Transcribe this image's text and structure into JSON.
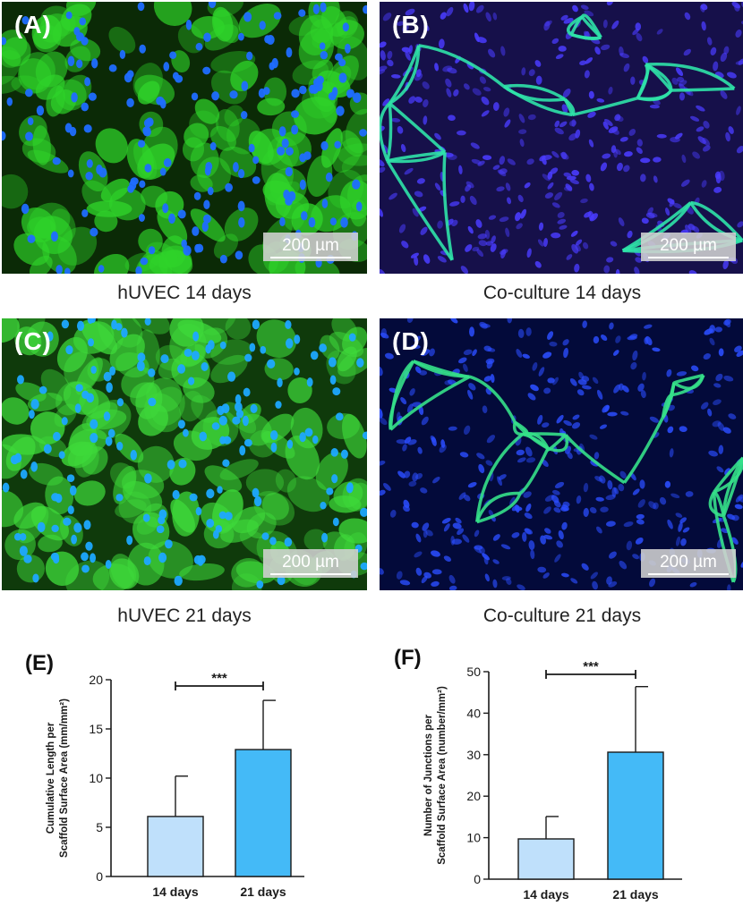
{
  "panels": [
    {
      "letter": "(A)",
      "caption": "hUVEC 14 days",
      "scale": "200 µm",
      "style": "monolayer",
      "stain_colors": {
        "actin": "#2fd42a",
        "nuclei": "#1f6dff",
        "background": "#0b2a06"
      }
    },
    {
      "letter": "(B)",
      "caption": "Co-culture 14 days",
      "scale": "200 µm",
      "style": "network",
      "stain_colors": {
        "actin": "#2fe3a8",
        "nuclei": "#4a3cff",
        "background": "#16104a"
      }
    },
    {
      "letter": "(C)",
      "caption": "hUVEC 21 days",
      "scale": "200 µm",
      "style": "monolayer",
      "stain_colors": {
        "actin": "#3ed93a",
        "nuclei": "#1ea8ff",
        "background": "#0f3a0b"
      }
    },
    {
      "letter": "(D)",
      "caption": "Co-culture 21 days",
      "scale": "200 µm",
      "style": "network",
      "stain_colors": {
        "actin": "#35e08a",
        "nuclei": "#2b4dff",
        "background": "#030a3a"
      }
    }
  ],
  "chart_data": [
    {
      "type": "bar",
      "panel_label": "(E)",
      "ylabel_line1": "Cumulative Length per",
      "ylabel_line2": "Scaffold Surface Area (mm/mm²)",
      "categories": [
        "14 days",
        "21 days"
      ],
      "values": [
        6.1,
        12.9
      ],
      "error": [
        4.1,
        5.0
      ],
      "ylim": [
        0,
        20
      ],
      "yticks": [
        0,
        5,
        10,
        15,
        20
      ],
      "significance": "***",
      "colors": [
        "#bfe0fb",
        "#44baf7"
      ]
    },
    {
      "type": "bar",
      "panel_label": "(F)",
      "ylabel_line1": "Number of Junctions per",
      "ylabel_line2": "Scaffold Surface Area (number/mm²)",
      "categories": [
        "14 days",
        "21 days"
      ],
      "values": [
        9.7,
        30.6
      ],
      "error": [
        5.4,
        15.8
      ],
      "ylim": [
        0,
        50
      ],
      "yticks": [
        0,
        10,
        20,
        30,
        40,
        50
      ],
      "significance": "***",
      "colors": [
        "#bfe0fb",
        "#44baf7"
      ]
    }
  ]
}
